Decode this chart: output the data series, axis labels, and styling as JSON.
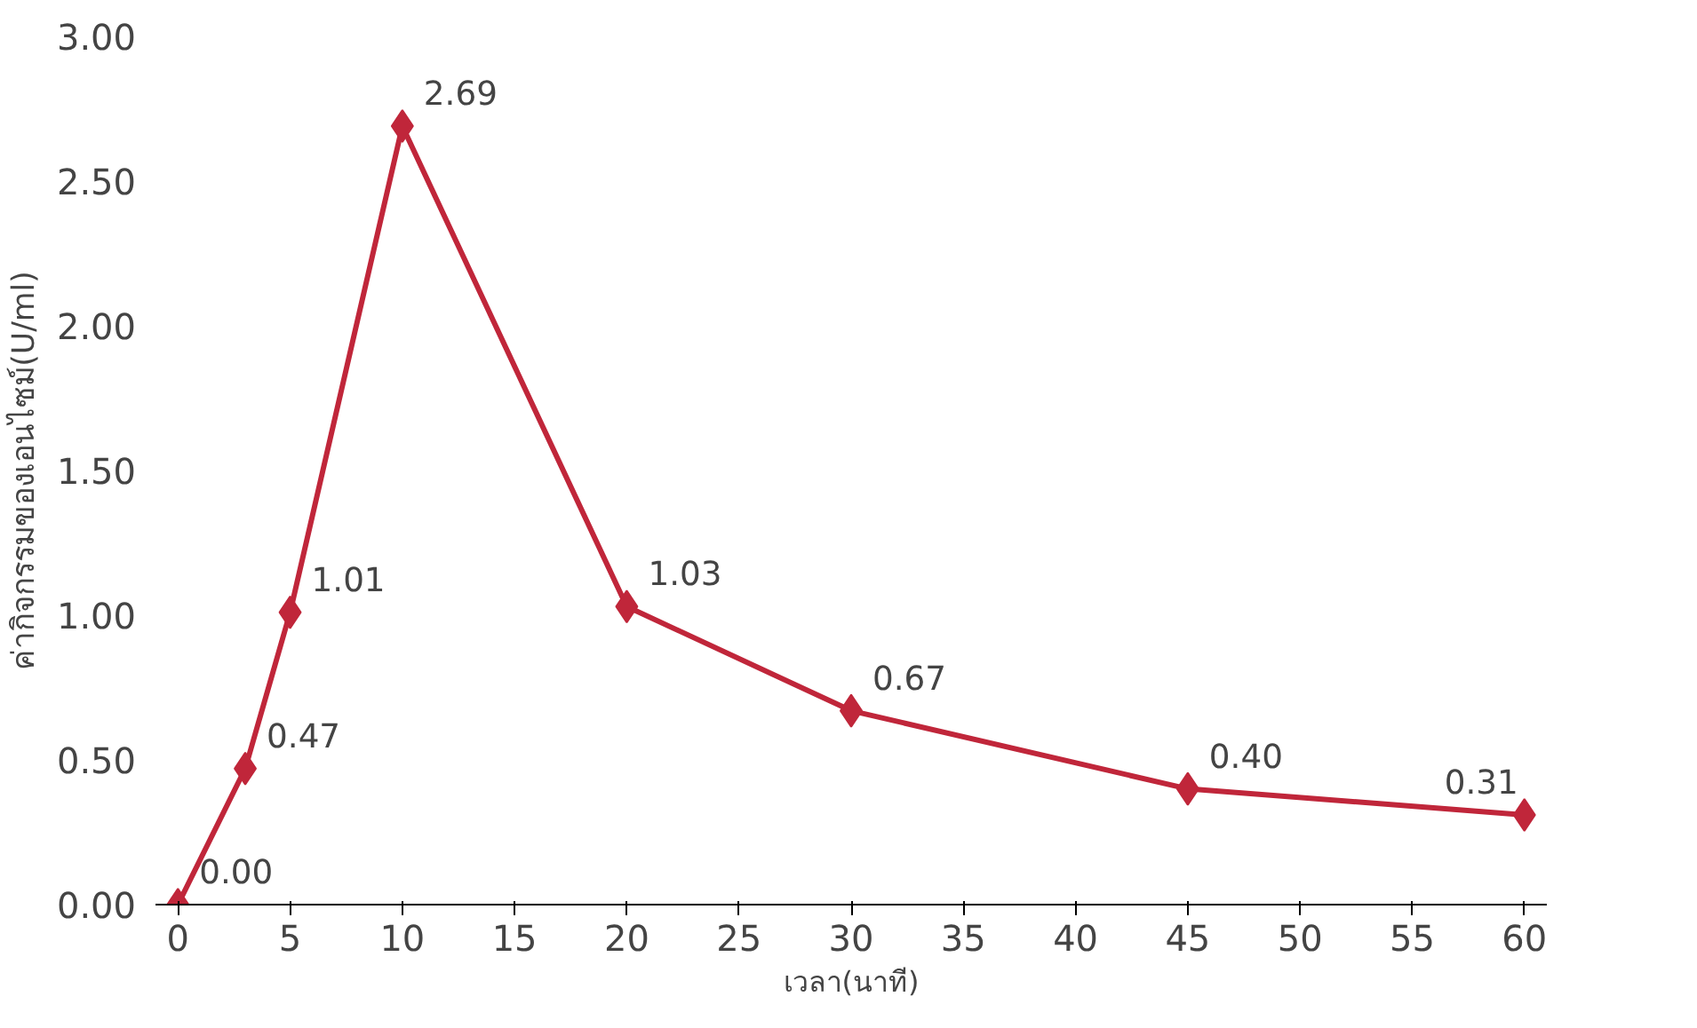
{
  "chart_data": {
    "type": "line",
    "xlabel": "เวลา(นาที)",
    "ylabel": "ค่ากิจกรรมของเอนไซม์(U/ml)",
    "x": [
      0,
      3,
      5,
      10,
      20,
      30,
      45,
      60
    ],
    "series": [
      {
        "color": "#c0263a",
        "values": [
          0.0,
          0.47,
          1.01,
          2.69,
          1.03,
          0.67,
          0.4,
          0.31
        ],
        "value_labels": [
          "0.00",
          "0.47",
          "1.01",
          "2.69",
          "1.03",
          "0.67",
          "0.40",
          "0.31"
        ]
      }
    ],
    "xlim": [
      -1,
      61
    ],
    "xticks": [
      0,
      5,
      10,
      15,
      20,
      25,
      30,
      35,
      40,
      45,
      50,
      55,
      60
    ],
    "ylim": [
      0,
      3
    ],
    "yticks": [
      {
        "value": 0,
        "label": "0.00"
      },
      {
        "value": 0.5,
        "label": "0.50"
      },
      {
        "value": 1,
        "label": "1.00"
      },
      {
        "value": 1.5,
        "label": "1.50"
      },
      {
        "value": 2,
        "label": "2.00"
      },
      {
        "value": 2.5,
        "label": "2.50"
      },
      {
        "value": 3,
        "label": "3.00"
      }
    ],
    "marker": "diamond",
    "grid": false
  }
}
